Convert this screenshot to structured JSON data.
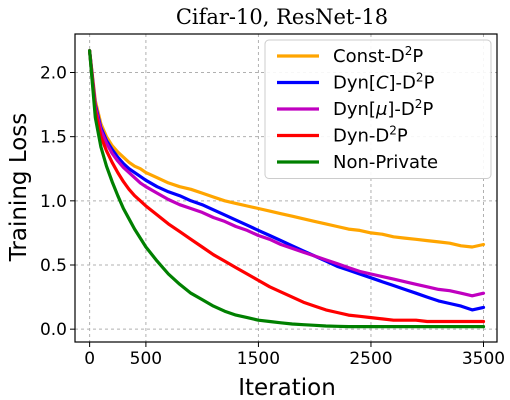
{
  "chart_data": {
    "type": "line",
    "title": "Cifar-10, ResNet-18",
    "xlabel": "Iteration",
    "ylabel": "Training Loss",
    "xlim": [
      -130,
      3620
    ],
    "ylim": [
      -0.1,
      2.3
    ],
    "xticks": [
      0,
      500,
      1500,
      2500,
      3500
    ],
    "xtick_labels": [
      "0",
      "500",
      "1500",
      "2500",
      "3500"
    ],
    "yticks": [
      0.0,
      0.5,
      1.0,
      1.5,
      2.0
    ],
    "ytick_labels": [
      "0.0",
      "0.5",
      "1.0",
      "1.5",
      "2.0"
    ],
    "grid": true,
    "legend_position": "top-right",
    "series": [
      {
        "name": "Const-D2P",
        "legend_base": "Const-D",
        "legend_sup": "2",
        "legend_tail": "P",
        "color": "#ffa500",
        "points": [
          [
            0,
            2.17
          ],
          [
            50,
            1.78
          ],
          [
            100,
            1.6
          ],
          [
            150,
            1.5
          ],
          [
            200,
            1.43
          ],
          [
            250,
            1.38
          ],
          [
            300,
            1.34
          ],
          [
            350,
            1.3
          ],
          [
            400,
            1.27
          ],
          [
            450,
            1.25
          ],
          [
            500,
            1.22
          ],
          [
            600,
            1.18
          ],
          [
            700,
            1.14
          ],
          [
            800,
            1.11
          ],
          [
            900,
            1.09
          ],
          [
            1000,
            1.06
          ],
          [
            1100,
            1.03
          ],
          [
            1200,
            1.0
          ],
          [
            1300,
            0.98
          ],
          [
            1400,
            0.96
          ],
          [
            1500,
            0.94
          ],
          [
            1600,
            0.92
          ],
          [
            1700,
            0.9
          ],
          [
            1800,
            0.88
          ],
          [
            1900,
            0.86
          ],
          [
            2000,
            0.84
          ],
          [
            2100,
            0.82
          ],
          [
            2200,
            0.8
          ],
          [
            2300,
            0.78
          ],
          [
            2400,
            0.77
          ],
          [
            2500,
            0.75
          ],
          [
            2600,
            0.74
          ],
          [
            2700,
            0.72
          ],
          [
            2800,
            0.71
          ],
          [
            2900,
            0.7
          ],
          [
            3000,
            0.69
          ],
          [
            3100,
            0.68
          ],
          [
            3200,
            0.67
          ],
          [
            3300,
            0.65
          ],
          [
            3400,
            0.64
          ],
          [
            3500,
            0.66
          ]
        ]
      },
      {
        "name": "Dyn[C]-D2P",
        "legend_base": "Dyn[",
        "legend_italic": "C",
        "legend_mid": "]-D",
        "legend_sup": "2",
        "legend_tail": "P",
        "color": "#0000ff",
        "points": [
          [
            0,
            2.17
          ],
          [
            50,
            1.75
          ],
          [
            100,
            1.57
          ],
          [
            150,
            1.47
          ],
          [
            200,
            1.4
          ],
          [
            250,
            1.34
          ],
          [
            300,
            1.29
          ],
          [
            350,
            1.25
          ],
          [
            400,
            1.22
          ],
          [
            450,
            1.19
          ],
          [
            500,
            1.16
          ],
          [
            600,
            1.11
          ],
          [
            700,
            1.07
          ],
          [
            800,
            1.04
          ],
          [
            900,
            1.0
          ],
          [
            1000,
            0.97
          ],
          [
            1100,
            0.93
          ],
          [
            1200,
            0.89
          ],
          [
            1300,
            0.85
          ],
          [
            1400,
            0.81
          ],
          [
            1500,
            0.77
          ],
          [
            1600,
            0.73
          ],
          [
            1700,
            0.69
          ],
          [
            1800,
            0.65
          ],
          [
            1900,
            0.61
          ],
          [
            2000,
            0.57
          ],
          [
            2100,
            0.53
          ],
          [
            2200,
            0.49
          ],
          [
            2300,
            0.46
          ],
          [
            2400,
            0.43
          ],
          [
            2500,
            0.4
          ],
          [
            2600,
            0.37
          ],
          [
            2700,
            0.34
          ],
          [
            2800,
            0.31
          ],
          [
            2900,
            0.28
          ],
          [
            3000,
            0.25
          ],
          [
            3100,
            0.22
          ],
          [
            3200,
            0.2
          ],
          [
            3300,
            0.18
          ],
          [
            3400,
            0.15
          ],
          [
            3500,
            0.17
          ]
        ]
      },
      {
        "name": "Dyn[μ]-D2P",
        "legend_base": "Dyn[",
        "legend_italic": "μ",
        "legend_mid": "]-D",
        "legend_sup": "2",
        "legend_tail": "P",
        "color": "#c000c0",
        "points": [
          [
            0,
            2.17
          ],
          [
            50,
            1.73
          ],
          [
            100,
            1.55
          ],
          [
            150,
            1.45
          ],
          [
            200,
            1.37
          ],
          [
            250,
            1.31
          ],
          [
            300,
            1.26
          ],
          [
            350,
            1.22
          ],
          [
            400,
            1.18
          ],
          [
            450,
            1.14
          ],
          [
            500,
            1.11
          ],
          [
            600,
            1.06
          ],
          [
            700,
            1.01
          ],
          [
            800,
            0.97
          ],
          [
            900,
            0.94
          ],
          [
            1000,
            0.91
          ],
          [
            1100,
            0.87
          ],
          [
            1200,
            0.84
          ],
          [
            1300,
            0.8
          ],
          [
            1400,
            0.77
          ],
          [
            1500,
            0.73
          ],
          [
            1600,
            0.7
          ],
          [
            1700,
            0.66
          ],
          [
            1800,
            0.63
          ],
          [
            1900,
            0.6
          ],
          [
            2000,
            0.57
          ],
          [
            2100,
            0.54
          ],
          [
            2200,
            0.51
          ],
          [
            2300,
            0.48
          ],
          [
            2400,
            0.45
          ],
          [
            2500,
            0.43
          ],
          [
            2600,
            0.41
          ],
          [
            2700,
            0.39
          ],
          [
            2800,
            0.37
          ],
          [
            2900,
            0.35
          ],
          [
            3000,
            0.33
          ],
          [
            3100,
            0.31
          ],
          [
            3200,
            0.3
          ],
          [
            3300,
            0.28
          ],
          [
            3400,
            0.26
          ],
          [
            3500,
            0.28
          ]
        ]
      },
      {
        "name": "Dyn-D2P",
        "legend_base": "Dyn-D",
        "legend_sup": "2",
        "legend_tail": "P",
        "color": "#ff0000",
        "points": [
          [
            0,
            2.17
          ],
          [
            50,
            1.7
          ],
          [
            100,
            1.5
          ],
          [
            150,
            1.39
          ],
          [
            200,
            1.3
          ],
          [
            250,
            1.22
          ],
          [
            300,
            1.15
          ],
          [
            350,
            1.09
          ],
          [
            400,
            1.04
          ],
          [
            450,
            1.0
          ],
          [
            500,
            0.96
          ],
          [
            600,
            0.89
          ],
          [
            700,
            0.82
          ],
          [
            800,
            0.76
          ],
          [
            900,
            0.7
          ],
          [
            1000,
            0.64
          ],
          [
            1100,
            0.58
          ],
          [
            1200,
            0.53
          ],
          [
            1300,
            0.48
          ],
          [
            1400,
            0.43
          ],
          [
            1500,
            0.38
          ],
          [
            1600,
            0.33
          ],
          [
            1700,
            0.29
          ],
          [
            1800,
            0.25
          ],
          [
            1900,
            0.21
          ],
          [
            2000,
            0.18
          ],
          [
            2100,
            0.15
          ],
          [
            2200,
            0.13
          ],
          [
            2300,
            0.11
          ],
          [
            2400,
            0.1
          ],
          [
            2500,
            0.09
          ],
          [
            2600,
            0.08
          ],
          [
            2700,
            0.07
          ],
          [
            2800,
            0.07
          ],
          [
            2900,
            0.07
          ],
          [
            3000,
            0.06
          ],
          [
            3100,
            0.06
          ],
          [
            3200,
            0.06
          ],
          [
            3300,
            0.06
          ],
          [
            3400,
            0.06
          ],
          [
            3500,
            0.06
          ]
        ]
      },
      {
        "name": "Non-Private",
        "legend_base": "Non-Private",
        "color": "#008000",
        "points": [
          [
            0,
            2.17
          ],
          [
            50,
            1.65
          ],
          [
            100,
            1.42
          ],
          [
            150,
            1.27
          ],
          [
            200,
            1.15
          ],
          [
            250,
            1.04
          ],
          [
            300,
            0.94
          ],
          [
            350,
            0.86
          ],
          [
            400,
            0.78
          ],
          [
            450,
            0.71
          ],
          [
            500,
            0.64
          ],
          [
            600,
            0.53
          ],
          [
            700,
            0.43
          ],
          [
            800,
            0.35
          ],
          [
            900,
            0.28
          ],
          [
            1000,
            0.23
          ],
          [
            1100,
            0.18
          ],
          [
            1200,
            0.14
          ],
          [
            1300,
            0.11
          ],
          [
            1400,
            0.09
          ],
          [
            1500,
            0.07
          ],
          [
            1600,
            0.06
          ],
          [
            1700,
            0.05
          ],
          [
            1800,
            0.04
          ],
          [
            1900,
            0.035
          ],
          [
            2000,
            0.03
          ],
          [
            2100,
            0.025
          ],
          [
            2200,
            0.022
          ],
          [
            2300,
            0.02
          ],
          [
            2400,
            0.02
          ],
          [
            2500,
            0.02
          ],
          [
            2600,
            0.02
          ],
          [
            2700,
            0.02
          ],
          [
            2800,
            0.02
          ],
          [
            2900,
            0.02
          ],
          [
            3000,
            0.02
          ],
          [
            3100,
            0.02
          ],
          [
            3200,
            0.02
          ],
          [
            3300,
            0.02
          ],
          [
            3400,
            0.02
          ],
          [
            3500,
            0.02
          ]
        ]
      }
    ]
  }
}
